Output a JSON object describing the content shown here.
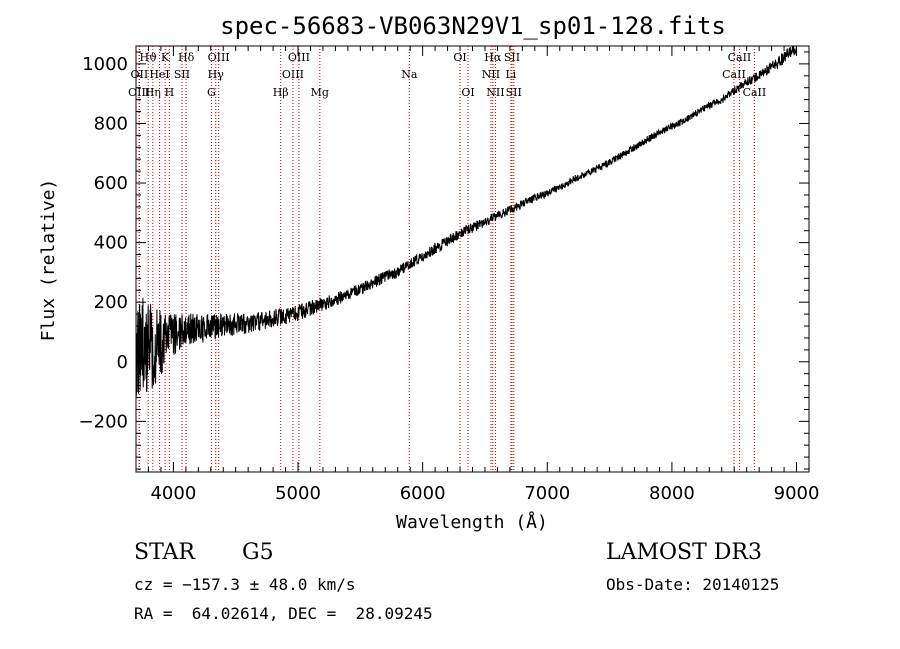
{
  "chart_data": {
    "type": "line",
    "title": "spec-56683-VB063N29V1_sp01-128.fits",
    "xlabel": "Wavelength (Å)",
    "ylabel": "Flux (relative)",
    "xlim": [
      3700,
      9100
    ],
    "ylim": [
      -370,
      1060
    ],
    "x_ticks": [
      4000,
      5000,
      6000,
      7000,
      8000,
      9000
    ],
    "x_tick_labels": [
      "4000",
      "5000",
      "6000",
      "7000",
      "8000",
      "9000"
    ],
    "y_ticks": [
      -200,
      0,
      200,
      400,
      600,
      800,
      1000
    ],
    "y_tick_labels": [
      "−200",
      "0",
      "200",
      "400",
      "600",
      "800",
      "1000"
    ],
    "series": [
      {
        "name": "spectrum",
        "color": "#000000",
        "x": [
          3700,
          3750,
          3800,
          3850,
          3900,
          3950,
          4000,
          4050,
          4100,
          4200,
          4300,
          4400,
          4500,
          4600,
          4700,
          4800,
          4900,
          5000,
          5100,
          5200,
          5300,
          5400,
          5500,
          5600,
          5700,
          5800,
          5900,
          6000,
          6100,
          6200,
          6300,
          6400,
          6500,
          6600,
          6700,
          6800,
          6900,
          7000,
          7100,
          7200,
          7300,
          7400,
          7500,
          7600,
          7700,
          7800,
          7900,
          8000,
          8100,
          8200,
          8300,
          8400,
          8500,
          8600,
          8700,
          8800,
          8900,
          8950,
          9000
        ],
        "y": [
          80,
          60,
          50,
          40,
          60,
          80,
          90,
          100,
          110,
          110,
          115,
          120,
          125,
          130,
          135,
          145,
          155,
          165,
          180,
          195,
          210,
          225,
          245,
          265,
          285,
          300,
          330,
          355,
          380,
          405,
          430,
          450,
          470,
          490,
          510,
          530,
          550,
          565,
          585,
          610,
          630,
          650,
          670,
          695,
          720,
          745,
          770,
          790,
          810,
          835,
          860,
          880,
          910,
          940,
          960,
          990,
          1020,
          1040,
          1055
        ],
        "noise": [
          200,
          180,
          160,
          140,
          110,
          90,
          70,
          60,
          55,
          50,
          45,
          40,
          38,
          35,
          32,
          30,
          30,
          28,
          26,
          24,
          22,
          20,
          20,
          20,
          20,
          20,
          18,
          18,
          18,
          18,
          17,
          17,
          16,
          16,
          15,
          15,
          14,
          12,
          12,
          12,
          12,
          12,
          12,
          12,
          12,
          12,
          12,
          12,
          12,
          12,
          12,
          14,
          14,
          14,
          16,
          18,
          20,
          20,
          20
        ]
      }
    ],
    "spectral_lines": [
      {
        "label": "Hϑ",
        "wavelength": 3798,
        "row": 1
      },
      {
        "label": "OII",
        "wavelength": 3727,
        "row": 2
      },
      {
        "label": "Hη",
        "wavelength": 3835,
        "row": 3
      },
      {
        "label": "OIII",
        "wavelength": 3725,
        "row": 3
      },
      {
        "label": "HeI",
        "wavelength": 3889,
        "row": 2
      },
      {
        "label": "K",
        "wavelength": 3934,
        "row": 1
      },
      {
        "label": "H",
        "wavelength": 3968,
        "row": 3
      },
      {
        "label": "SII",
        "wavelength": 4069,
        "row": 2
      },
      {
        "label": "Hδ",
        "wavelength": 4102,
        "row": 1
      },
      {
        "label": "OIII",
        "wavelength": 4363,
        "row": 1
      },
      {
        "label": "Hγ",
        "wavelength": 4340,
        "row": 2
      },
      {
        "label": "G",
        "wavelength": 4305,
        "row": 3
      },
      {
        "label": "Hβ",
        "wavelength": 4861,
        "row": 3
      },
      {
        "label": "OIII",
        "wavelength": 5007,
        "row": 1
      },
      {
        "label": "OIII",
        "wavelength": 4959,
        "row": 2
      },
      {
        "label": "Mg",
        "wavelength": 5175,
        "row": 3
      },
      {
        "label": "Na",
        "wavelength": 5893,
        "row": 2
      },
      {
        "label": "OI",
        "wavelength": 6300,
        "row": 1
      },
      {
        "label": "OI",
        "wavelength": 6364,
        "row": 3
      },
      {
        "label": "Hα",
        "wavelength": 6563,
        "row": 1
      },
      {
        "label": "NII",
        "wavelength": 6548,
        "row": 2
      },
      {
        "label": "NII",
        "wavelength": 6584,
        "row": 3
      },
      {
        "label": "SII",
        "wavelength": 6717,
        "row": 1
      },
      {
        "label": "Li",
        "wavelength": 6708,
        "row": 2
      },
      {
        "label": "SII",
        "wavelength": 6731,
        "row": 3
      },
      {
        "label": "CaII",
        "wavelength": 8542,
        "row": 1
      },
      {
        "label": "CaII",
        "wavelength": 8498,
        "row": 2
      },
      {
        "label": "CaII",
        "wavelength": 8662,
        "row": 3
      }
    ]
  },
  "info": {
    "object_class": "STAR",
    "subclass": "G5",
    "survey": "LAMOST DR3",
    "cz": "cz = −157.3 ± 48.0 km/s",
    "obs_date": "Obs-Date: 20140125",
    "coords": "RA =  64.02614, DEC =  28.09245"
  }
}
